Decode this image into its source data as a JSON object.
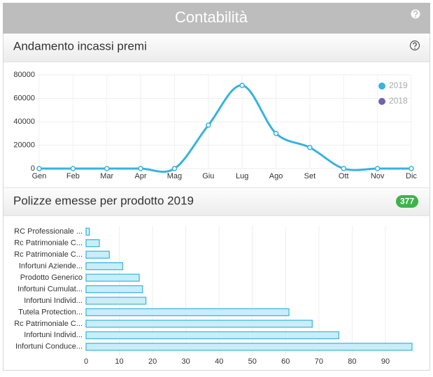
{
  "header": {
    "title": "Contabilità"
  },
  "chart_data": [
    {
      "type": "line",
      "title": "Andamento incassi premi",
      "categories": [
        "Gen",
        "Feb",
        "Mar",
        "Apr",
        "Mag",
        "Giu",
        "Lug",
        "Ago",
        "Set",
        "Ott",
        "Nov",
        "Dic"
      ],
      "series": [
        {
          "name": "2019",
          "color": "#36b3de",
          "values": [
            0,
            0,
            0,
            0,
            0,
            37000,
            71000,
            30000,
            18000,
            0,
            0,
            0
          ]
        },
        {
          "name": "2018",
          "color": "#7461b0",
          "values": [
            null,
            null,
            null,
            null,
            null,
            null,
            null,
            null,
            null,
            null,
            null,
            null
          ]
        }
      ],
      "ylim": [
        0,
        80000
      ],
      "yticks": [
        0,
        20000,
        40000,
        60000,
        80000
      ],
      "grid": true,
      "legend": "top-right"
    },
    {
      "type": "hbar",
      "title": "Polizze emesse per prodotto 2019",
      "badge": "377",
      "categories": [
        "RC Professionale ...",
        "Rc Patrimoniale C...",
        "Rc Patrimoniale C...",
        "Infortuni Aziende...",
        "Prodotto Generico",
        "Infortuni Cumulat...",
        "Infortuni Individ...",
        "Tutela Protection...",
        "Rc Patrimoniale C...",
        "Infortuni Individ...",
        "Infortuni Conduce..."
      ],
      "values": [
        1,
        4,
        7,
        11,
        16,
        17,
        18,
        61,
        68,
        76,
        98
      ],
      "color": "#36b3de",
      "fill": "#c8eef9",
      "xlim": [
        0,
        98
      ],
      "xticks": [
        0,
        10,
        20,
        30,
        40,
        50,
        60,
        70,
        80,
        90
      ],
      "grid": true
    }
  ]
}
